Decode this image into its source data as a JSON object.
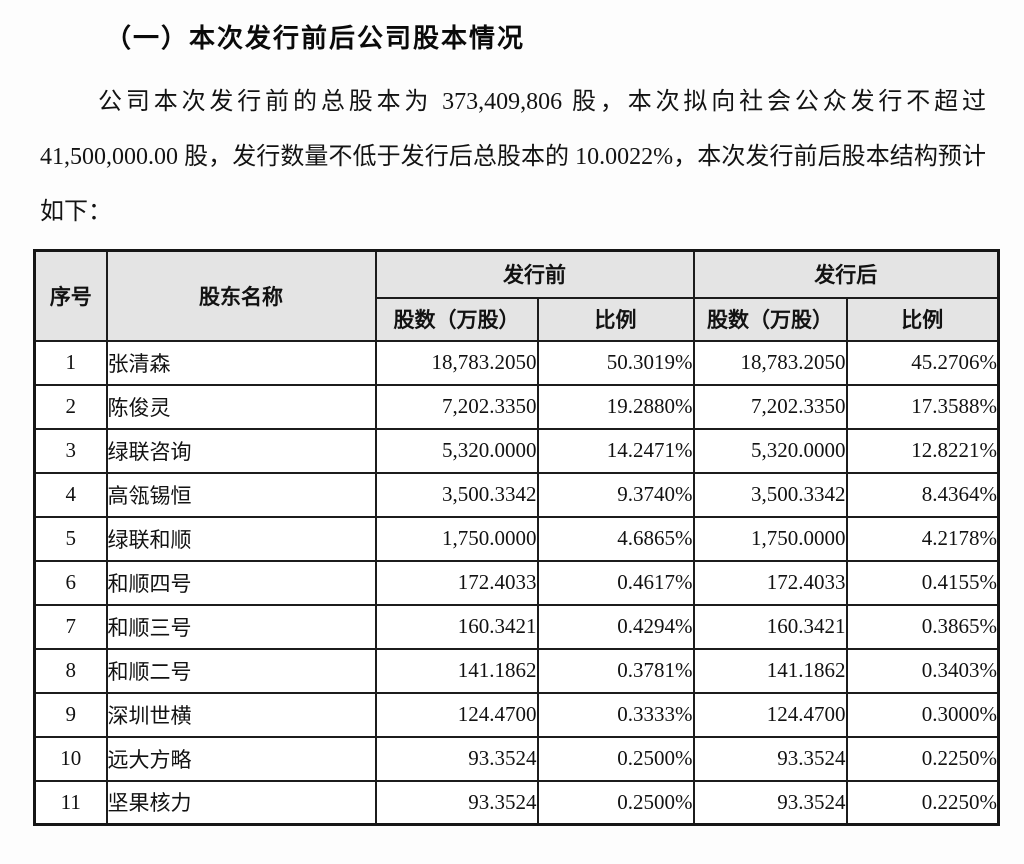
{
  "page": {
    "title": "（一）本次发行前后公司股本情况",
    "paragraph": "公司本次发行前的总股本为 373,409,806 股，本次拟向社会公众发行不超过 41,500,000.00 股，发行数量不低于发行后总股本的 10.0022%，本次发行前后股本结构预计如下："
  },
  "table": {
    "headers": {
      "seq": "序号",
      "shareholder": "股东名称",
      "pre_issue": "发行前",
      "post_issue": "发行后",
      "shares": "股数（万股）",
      "ratio": "比例"
    },
    "rows": [
      [
        "1",
        "张清森",
        "18,783.2050",
        "50.3019%",
        "18,783.2050",
        "45.2706%"
      ],
      [
        "2",
        "陈俊灵",
        "7,202.3350",
        "19.2880%",
        "7,202.3350",
        "17.3588%"
      ],
      [
        "3",
        "绿联咨询",
        "5,320.0000",
        "14.2471%",
        "5,320.0000",
        "12.8221%"
      ],
      [
        "4",
        "高瓴锡恒",
        "3,500.3342",
        "9.3740%",
        "3,500.3342",
        "8.4364%"
      ],
      [
        "5",
        "绿联和顺",
        "1,750.0000",
        "4.6865%",
        "1,750.0000",
        "4.2178%"
      ],
      [
        "6",
        "和顺四号",
        "172.4033",
        "0.4617%",
        "172.4033",
        "0.4155%"
      ],
      [
        "7",
        "和顺三号",
        "160.3421",
        "0.4294%",
        "160.3421",
        "0.3865%"
      ],
      [
        "8",
        "和顺二号",
        "141.1862",
        "0.3781%",
        "141.1862",
        "0.3403%"
      ],
      [
        "9",
        "深圳世横",
        "124.4700",
        "0.3333%",
        "124.4700",
        "0.3000%"
      ],
      [
        "10",
        "远大方略",
        "93.3524",
        "0.2500%",
        "93.3524",
        "0.2250%"
      ],
      [
        "11",
        "坚果核力",
        "93.3524",
        "0.2500%",
        "93.3524",
        "0.2250%"
      ]
    ]
  },
  "colors": {
    "header_bg": "#e4e4e4",
    "border": "#1c1c1c",
    "text": "#121212"
  }
}
